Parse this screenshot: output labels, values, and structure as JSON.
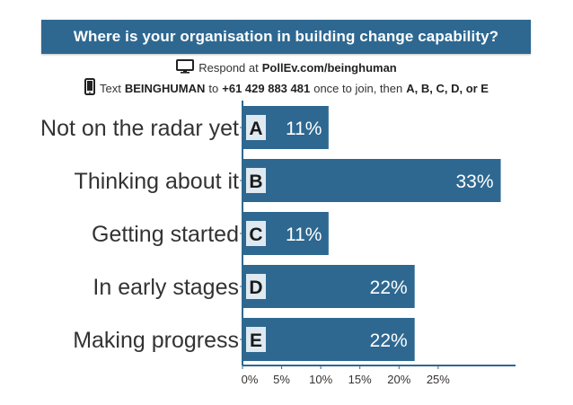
{
  "header": {
    "title": "Where is your organisation in building change capability?"
  },
  "instructions": {
    "respond_prefix": "Respond at",
    "respond_url": "PollEv.com/beinghuman",
    "text_prefix": "Text",
    "keyword": "BEINGHUMAN",
    "to_word": "to",
    "phone": "+61 429 883 481",
    "join_text": "once to join, then",
    "options_text": "A, B, C, D, or E",
    "monitor_icon": "monitor-icon",
    "phone_icon": "mobile-phone-icon"
  },
  "colors": {
    "bar": "#2e6891",
    "badge": "#dfe9f1",
    "axis": "#2e6891"
  },
  "chart_data": {
    "type": "bar",
    "orientation": "horizontal",
    "categories": [
      "Not on the radar yet",
      "Thinking about it",
      "Getting started",
      "In early stages",
      "Making progress"
    ],
    "letters": [
      "A",
      "B",
      "C",
      "D",
      "E"
    ],
    "values": [
      11,
      33,
      11,
      22,
      22
    ],
    "value_labels": [
      "11%",
      "33%",
      "11%",
      "22%",
      "22%"
    ],
    "xticks": [
      "0%",
      "5%",
      "10%",
      "15%",
      "20%",
      "25%"
    ],
    "xtick_values": [
      0,
      5,
      10,
      15,
      20,
      25
    ],
    "xlim": [
      0,
      34.2
    ],
    "grid": false,
    "title": "",
    "xlabel": "",
    "ylabel": ""
  }
}
